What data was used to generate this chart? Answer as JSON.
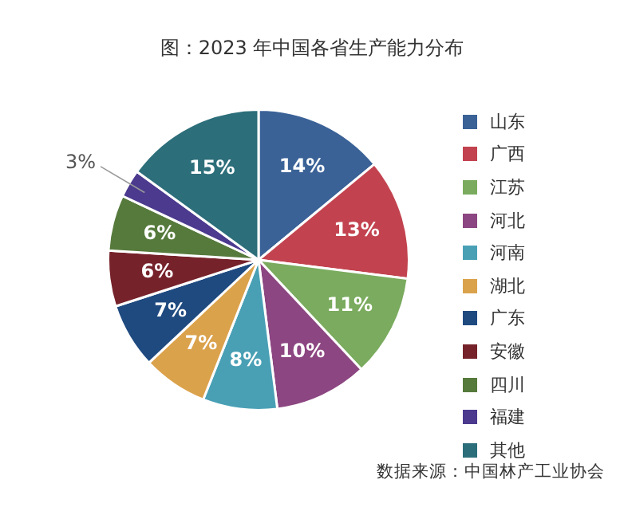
{
  "chart_data": {
    "type": "pie",
    "title": "图：2023 年中国各省生产能力分布",
    "categories": [
      "山东",
      "广西",
      "江苏",
      "河北",
      "河南",
      "湖北",
      "广东",
      "安徽",
      "四川",
      "福建",
      "其他"
    ],
    "values": [
      14,
      13,
      11,
      10,
      8,
      7,
      7,
      6,
      6,
      3,
      15
    ],
    "colors": [
      "#3a6297",
      "#c2434f",
      "#7aab5e",
      "#8c4681",
      "#49a0b5",
      "#dba24c",
      "#1f4a80",
      "#76222a",
      "#567a3c",
      "#4b3a8e",
      "#2c6e7a"
    ],
    "value_labels": [
      "14%",
      "13%",
      "11%",
      "10%",
      "8%",
      "7%",
      "7%",
      "6%",
      "6%",
      "3%",
      "15%"
    ],
    "legend": "right",
    "annotations": [
      "数据来源：中国林产工业协会"
    ]
  }
}
